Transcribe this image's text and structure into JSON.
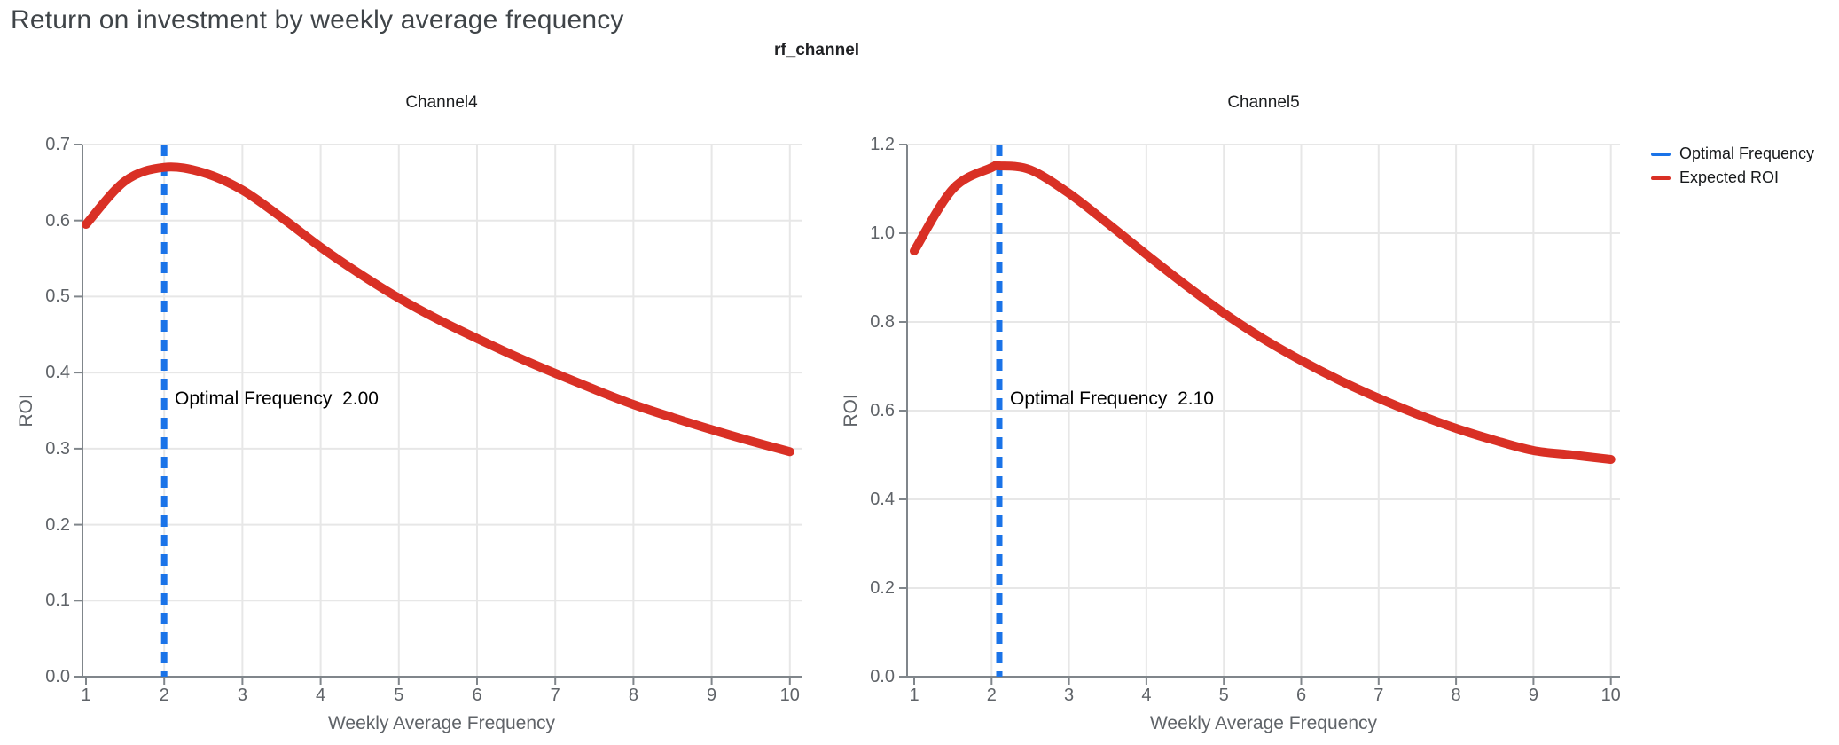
{
  "page": {
    "title": "Return on investment by weekly average frequency"
  },
  "chart": {
    "suptitle": "rf_channel"
  },
  "legend": {
    "items": [
      {
        "label": "Optimal Frequency",
        "color": "#1a73e8"
      },
      {
        "label": "Expected ROI",
        "color": "#d93025"
      }
    ]
  },
  "colors": {
    "optimal_frequency_line": "#1a73e8",
    "expected_roi_line": "#d93025",
    "axis": "#80868b",
    "grid": "#e7e7e7"
  },
  "chart_data": [
    {
      "type": "line",
      "title": "Channel4",
      "xlabel": "Weekly Average Frequency",
      "ylabel": "ROI",
      "xlim": [
        1,
        10
      ],
      "ylim": [
        0,
        0.7
      ],
      "xticks": [
        "1",
        "2",
        "3",
        "4",
        "5",
        "6",
        "7",
        "8",
        "9",
        "10"
      ],
      "yticks": [
        "0.0",
        "0.1",
        "0.2",
        "0.3",
        "0.4",
        "0.5",
        "0.6",
        "0.7"
      ],
      "grid": "on",
      "optimal_frequency": 2.0,
      "annotation": "Optimal Frequency  2.00",
      "series": [
        {
          "name": "Expected ROI",
          "x": [
            1,
            1.5,
            2,
            2.5,
            3,
            3.5,
            4,
            4.5,
            5,
            5.5,
            6,
            6.5,
            7,
            7.5,
            8,
            8.5,
            9,
            9.5,
            10
          ],
          "y": [
            0.595,
            0.652,
            0.67,
            0.663,
            0.64,
            0.604,
            0.565,
            0.53,
            0.498,
            0.47,
            0.445,
            0.421,
            0.399,
            0.378,
            0.358,
            0.341,
            0.325,
            0.31,
            0.296
          ]
        }
      ]
    },
    {
      "type": "line",
      "title": "Channel5",
      "xlabel": "Weekly Average Frequency",
      "ylabel": "ROI",
      "xlim": [
        1,
        10
      ],
      "ylim": [
        0,
        1.2
      ],
      "xticks": [
        "1",
        "2",
        "3",
        "4",
        "5",
        "6",
        "7",
        "8",
        "9",
        "10"
      ],
      "yticks": [
        "0.0",
        "0.2",
        "0.4",
        "0.6",
        "0.8",
        "1.0",
        "1.2"
      ],
      "grid": "on",
      "optimal_frequency": 2.1,
      "annotation": "Optimal Frequency  2.10",
      "series": [
        {
          "name": "Expected ROI",
          "x": [
            1,
            1.5,
            2,
            2.1,
            2.5,
            3,
            3.5,
            4,
            4.5,
            5,
            5.5,
            6,
            6.5,
            7,
            7.5,
            8,
            8.5,
            9,
            9.5,
            10
          ],
          "y": [
            0.96,
            1.1,
            1.148,
            1.152,
            1.143,
            1.09,
            1.022,
            0.952,
            0.884,
            0.82,
            0.763,
            0.713,
            0.668,
            0.628,
            0.592,
            0.56,
            0.533,
            0.51,
            0.5,
            0.49
          ]
        }
      ]
    }
  ]
}
